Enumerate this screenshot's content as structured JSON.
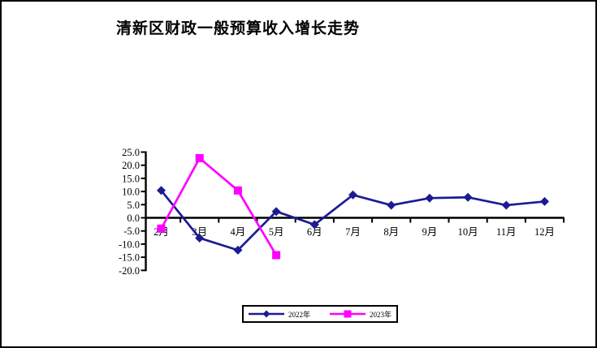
{
  "chart_data": {
    "type": "line",
    "title": "清新区财政一般预算收入增长走势",
    "xlabel": "",
    "ylabel": "",
    "categories": [
      "2月",
      "3月",
      "4月",
      "5月",
      "6月",
      "7月",
      "8月",
      "9月",
      "10月",
      "11月",
      "12月"
    ],
    "series": [
      {
        "name": "2022年",
        "marker": "diamond",
        "color": "#1b1b94",
        "values": [
          10.4,
          -7.7,
          -12.3,
          2.4,
          -2.6,
          8.7,
          4.8,
          7.5,
          7.8,
          4.8,
          6.2
        ]
      },
      {
        "name": "2023年",
        "marker": "square",
        "color": "#ff00ff",
        "values": [
          -4.1,
          22.7,
          10.4,
          -14.2,
          null,
          null,
          null,
          null,
          null,
          null,
          null
        ]
      }
    ],
    "ylim": [
      -20,
      25
    ],
    "ytick_step": 5,
    "ytick_format": "one-decimal",
    "grid": false,
    "legend_position": "bottom",
    "axis_color": "#000000"
  }
}
